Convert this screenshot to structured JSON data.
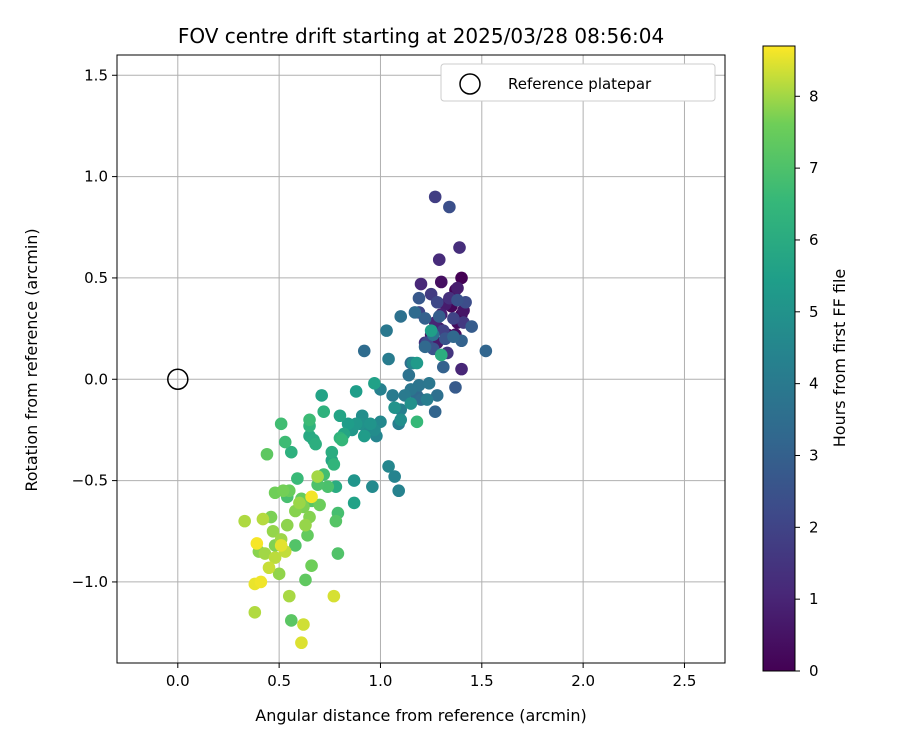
{
  "chart_data": {
    "type": "scatter",
    "title": "FOV centre drift starting at 2025/03/28 08:56:04",
    "xlabel": "Angular distance from reference (arcmin)",
    "ylabel": "Rotation from reference (arcmin)",
    "xlim": [
      -0.3,
      2.7
    ],
    "ylim": [
      -1.4,
      1.6
    ],
    "xticks": [
      0.0,
      0.5,
      1.0,
      1.5,
      2.0,
      2.5
    ],
    "xtick_labels": [
      "0.0",
      "0.5",
      "1.0",
      "1.5",
      "2.0",
      "2.5"
    ],
    "yticks": [
      -1.0,
      -0.5,
      0.0,
      0.5,
      1.0,
      1.5
    ],
    "ytick_labels": [
      "−1.0",
      "−0.5",
      "0.0",
      "0.5",
      "1.0",
      "1.5"
    ],
    "grid": true,
    "legend": {
      "position": "top-right",
      "label": "Reference platepar",
      "marker": "open-circle"
    },
    "reference_point": {
      "x": 0.0,
      "y": 0.0
    },
    "colorbar": {
      "label": "Hours from first FF file",
      "min": 0,
      "max": 8.7,
      "colormap": "viridis",
      "ticks": [
        0,
        1,
        2,
        3,
        4,
        5,
        6,
        7,
        8
      ],
      "tick_labels": [
        "0",
        "1",
        "2",
        "3",
        "4",
        "5",
        "6",
        "7",
        "8"
      ]
    },
    "points": [
      [
        1.4,
        0.5,
        0.0
      ],
      [
        1.37,
        0.44,
        0.1
      ],
      [
        1.35,
        0.36,
        0.15
      ],
      [
        1.4,
        0.32,
        0.2
      ],
      [
        1.33,
        0.22,
        0.25
      ],
      [
        1.38,
        0.28,
        0.3
      ],
      [
        1.37,
        0.22,
        0.35
      ],
      [
        1.3,
        0.48,
        0.4
      ],
      [
        1.36,
        0.4,
        0.45
      ],
      [
        1.29,
        0.25,
        0.5
      ],
      [
        1.41,
        0.34,
        0.55
      ],
      [
        1.25,
        0.22,
        0.6
      ],
      [
        1.28,
        0.18,
        0.7
      ],
      [
        1.32,
        0.37,
        0.75
      ],
      [
        1.38,
        0.45,
        0.8
      ],
      [
        1.3,
        0.32,
        0.9
      ],
      [
        1.27,
        0.28,
        1.0
      ],
      [
        1.4,
        0.05,
        1.05
      ],
      [
        1.2,
        0.47,
        1.1
      ],
      [
        1.29,
        0.59,
        1.2
      ],
      [
        1.39,
        0.65,
        1.3
      ],
      [
        1.34,
        0.4,
        1.35
      ],
      [
        1.22,
        0.18,
        1.4
      ],
      [
        1.33,
        0.13,
        1.5
      ],
      [
        1.41,
        0.28,
        1.6
      ],
      [
        1.25,
        0.42,
        1.7
      ],
      [
        1.27,
        0.9,
        1.8
      ],
      [
        1.31,
        0.24,
        1.9
      ],
      [
        1.36,
        0.3,
        2.0
      ],
      [
        1.19,
        0.33,
        2.05
      ],
      [
        1.28,
        0.38,
        2.1
      ],
      [
        1.23,
        0.18,
        2.2
      ],
      [
        1.42,
        0.38,
        2.3
      ],
      [
        1.34,
        0.85,
        2.4
      ],
      [
        1.38,
        0.39,
        2.5
      ],
      [
        1.26,
        0.15,
        2.55
      ],
      [
        1.32,
        0.2,
        2.6
      ],
      [
        1.19,
        0.4,
        2.7
      ],
      [
        1.37,
        -0.04,
        2.8
      ],
      [
        1.45,
        0.26,
        2.85
      ],
      [
        1.29,
        0.31,
        2.9
      ],
      [
        1.22,
        0.3,
        3.0
      ],
      [
        1.31,
        0.06,
        3.05
      ],
      [
        1.4,
        0.19,
        3.1
      ],
      [
        1.27,
        -0.16,
        3.15
      ],
      [
        1.52,
        0.14,
        3.2
      ],
      [
        1.36,
        0.21,
        3.25
      ],
      [
        1.22,
        0.16,
        3.3
      ],
      [
        1.18,
        -0.08,
        3.35
      ],
      [
        1.17,
        0.33,
        3.4
      ],
      [
        0.92,
        0.14,
        3.45
      ],
      [
        1.2,
        -0.1,
        3.5
      ],
      [
        1.15,
        0.08,
        3.55
      ],
      [
        1.28,
        -0.08,
        3.6
      ],
      [
        1.1,
        0.31,
        3.65
      ],
      [
        1.14,
        0.02,
        3.7
      ],
      [
        1.26,
        0.22,
        3.75
      ],
      [
        1.19,
        -0.03,
        3.8
      ],
      [
        1.15,
        -0.05,
        3.85
      ],
      [
        1.24,
        -0.02,
        3.9
      ],
      [
        1.03,
        0.24,
        3.95
      ],
      [
        1.12,
        -0.08,
        4.0
      ],
      [
        1.06,
        -0.08,
        4.05
      ],
      [
        1.04,
        0.1,
        4.1
      ],
      [
        1.23,
        -0.1,
        4.15
      ],
      [
        1.09,
        -0.22,
        4.2
      ],
      [
        1.1,
        -0.15,
        4.25
      ],
      [
        1.0,
        -0.05,
        4.3
      ],
      [
        1.09,
        -0.55,
        4.35
      ],
      [
        1.07,
        -0.48,
        4.4
      ],
      [
        0.98,
        -0.28,
        4.45
      ],
      [
        1.04,
        -0.43,
        4.5
      ],
      [
        1.16,
        0.08,
        4.55
      ],
      [
        1.0,
        -0.21,
        4.6
      ],
      [
        0.96,
        -0.53,
        4.65
      ],
      [
        0.93,
        -0.24,
        4.7
      ],
      [
        0.97,
        -0.25,
        4.75
      ],
      [
        0.91,
        -0.18,
        4.8
      ],
      [
        1.1,
        -0.2,
        4.85
      ],
      [
        1.15,
        -0.12,
        4.9
      ],
      [
        0.9,
        -0.22,
        4.95
      ],
      [
        1.07,
        -0.14,
        5.0
      ],
      [
        0.95,
        -0.22,
        5.05
      ],
      [
        0.87,
        -0.5,
        5.1
      ],
      [
        0.86,
        -0.25,
        5.15
      ],
      [
        0.88,
        -0.22,
        5.2
      ],
      [
        1.18,
        0.08,
        5.3
      ],
      [
        0.92,
        -0.28,
        5.35
      ],
      [
        0.84,
        -0.22,
        5.4
      ],
      [
        0.88,
        -0.06,
        5.45
      ],
      [
        1.25,
        0.24,
        5.5
      ],
      [
        0.97,
        -0.02,
        5.55
      ],
      [
        0.87,
        -0.61,
        5.6
      ],
      [
        0.71,
        -0.08,
        5.65
      ],
      [
        0.8,
        -0.18,
        5.7
      ],
      [
        0.82,
        -0.27,
        5.75
      ],
      [
        0.76,
        -0.4,
        5.8
      ],
      [
        0.65,
        -0.28,
        5.9
      ],
      [
        0.67,
        -0.3,
        5.95
      ],
      [
        0.78,
        -0.53,
        6.0
      ],
      [
        0.76,
        -0.36,
        6.05
      ],
      [
        1.3,
        0.12,
        6.1
      ],
      [
        0.68,
        -0.32,
        6.15
      ],
      [
        0.56,
        -0.36,
        6.2
      ],
      [
        0.72,
        -0.16,
        6.25
      ],
      [
        0.8,
        -0.29,
        6.3
      ],
      [
        0.65,
        -0.23,
        6.35
      ],
      [
        0.77,
        -0.42,
        6.4
      ],
      [
        0.81,
        -0.3,
        6.5
      ],
      [
        1.18,
        -0.21,
        6.55
      ],
      [
        0.59,
        -0.49,
        6.6
      ],
      [
        0.65,
        -0.2,
        6.65
      ],
      [
        0.53,
        -0.31,
        6.7
      ],
      [
        0.51,
        -0.22,
        6.75
      ],
      [
        0.72,
        -0.47,
        6.8
      ],
      [
        0.79,
        -0.66,
        6.85
      ],
      [
        0.54,
        -0.58,
        6.9
      ],
      [
        0.74,
        -0.53,
        6.95
      ],
      [
        0.69,
        -0.52,
        7.0
      ],
      [
        0.79,
        -0.86,
        7.05
      ],
      [
        0.58,
        -0.82,
        7.1
      ],
      [
        0.78,
        -0.7,
        7.15
      ],
      [
        0.66,
        -0.6,
        7.2
      ],
      [
        0.56,
        -1.19,
        7.25
      ],
      [
        0.44,
        -0.37,
        7.3
      ],
      [
        0.63,
        -0.99,
        7.35
      ],
      [
        0.64,
        -0.77,
        7.4
      ],
      [
        0.61,
        -0.59,
        7.45
      ],
      [
        0.55,
        -0.55,
        7.5
      ],
      [
        0.7,
        -0.62,
        7.55
      ],
      [
        0.66,
        -0.92,
        7.6
      ],
      [
        0.48,
        -0.56,
        7.62
      ],
      [
        0.52,
        -0.55,
        7.65
      ],
      [
        0.46,
        -0.68,
        7.7
      ],
      [
        0.62,
        -0.63,
        7.72
      ],
      [
        0.48,
        -0.82,
        7.75
      ],
      [
        0.65,
        -0.68,
        7.78
      ],
      [
        0.58,
        -0.65,
        7.8
      ],
      [
        0.4,
        -0.85,
        7.82
      ],
      [
        0.54,
        -0.72,
        7.85
      ],
      [
        0.5,
        -0.96,
        7.88
      ],
      [
        0.47,
        -0.75,
        7.9
      ],
      [
        0.63,
        -0.72,
        7.92
      ],
      [
        0.6,
        -0.61,
        7.95
      ],
      [
        0.51,
        -0.79,
        7.98
      ],
      [
        0.43,
        -0.86,
        8.0
      ],
      [
        0.69,
        -0.48,
        8.02
      ],
      [
        0.55,
        -1.07,
        8.05
      ],
      [
        0.33,
        -0.7,
        8.1
      ],
      [
        0.38,
        -1.15,
        8.12
      ],
      [
        0.42,
        -0.69,
        8.15
      ],
      [
        0.48,
        -0.88,
        8.2
      ],
      [
        0.53,
        -0.85,
        8.25
      ],
      [
        0.45,
        -0.93,
        8.3
      ],
      [
        0.62,
        -1.21,
        8.35
      ],
      [
        0.77,
        -1.07,
        8.4
      ],
      [
        0.61,
        -1.3,
        8.45
      ],
      [
        0.51,
        -0.82,
        8.5
      ],
      [
        0.38,
        -1.01,
        8.55
      ],
      [
        0.41,
        -1.0,
        8.6
      ],
      [
        0.66,
        -0.58,
        8.62
      ],
      [
        0.39,
        -0.81,
        8.65
      ]
    ]
  }
}
